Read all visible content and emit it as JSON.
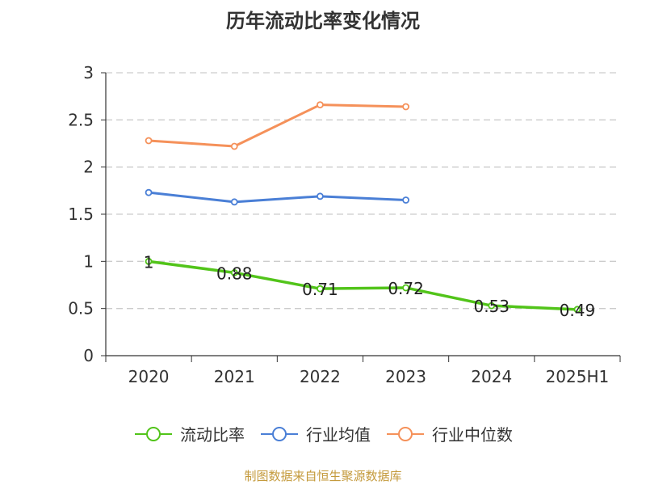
{
  "title": "历年流动比率变化情况",
  "footer": "制图数据来自恒生聚源数据库",
  "chart_data": {
    "type": "line",
    "categories": [
      "2020",
      "2021",
      "2022",
      "2023",
      "2024",
      "2025H1"
    ],
    "ylim": [
      0,
      3
    ],
    "yticks": [
      0,
      0.5,
      1,
      1.5,
      2,
      2.5,
      3
    ],
    "ytick_labels": [
      "0",
      "0.5",
      "1",
      "1.5",
      "2",
      "2.5",
      "3"
    ],
    "grid": true,
    "legend_position": "bottom",
    "series": [
      {
        "name": "流动比率",
        "color": "#52c41a",
        "values": [
          1,
          0.88,
          0.71,
          0.72,
          0.53,
          0.49
        ],
        "labels": [
          "1",
          "0.88",
          "0.71",
          "0.72",
          "0.53",
          "0.49"
        ]
      },
      {
        "name": "行业均值",
        "color": "#4a7fd6",
        "values": [
          1.73,
          1.63,
          1.69,
          1.65,
          null,
          null
        ]
      },
      {
        "name": "行业中位数",
        "color": "#f5915a",
        "values": [
          2.28,
          2.22,
          2.66,
          2.64,
          null,
          null
        ]
      }
    ]
  }
}
